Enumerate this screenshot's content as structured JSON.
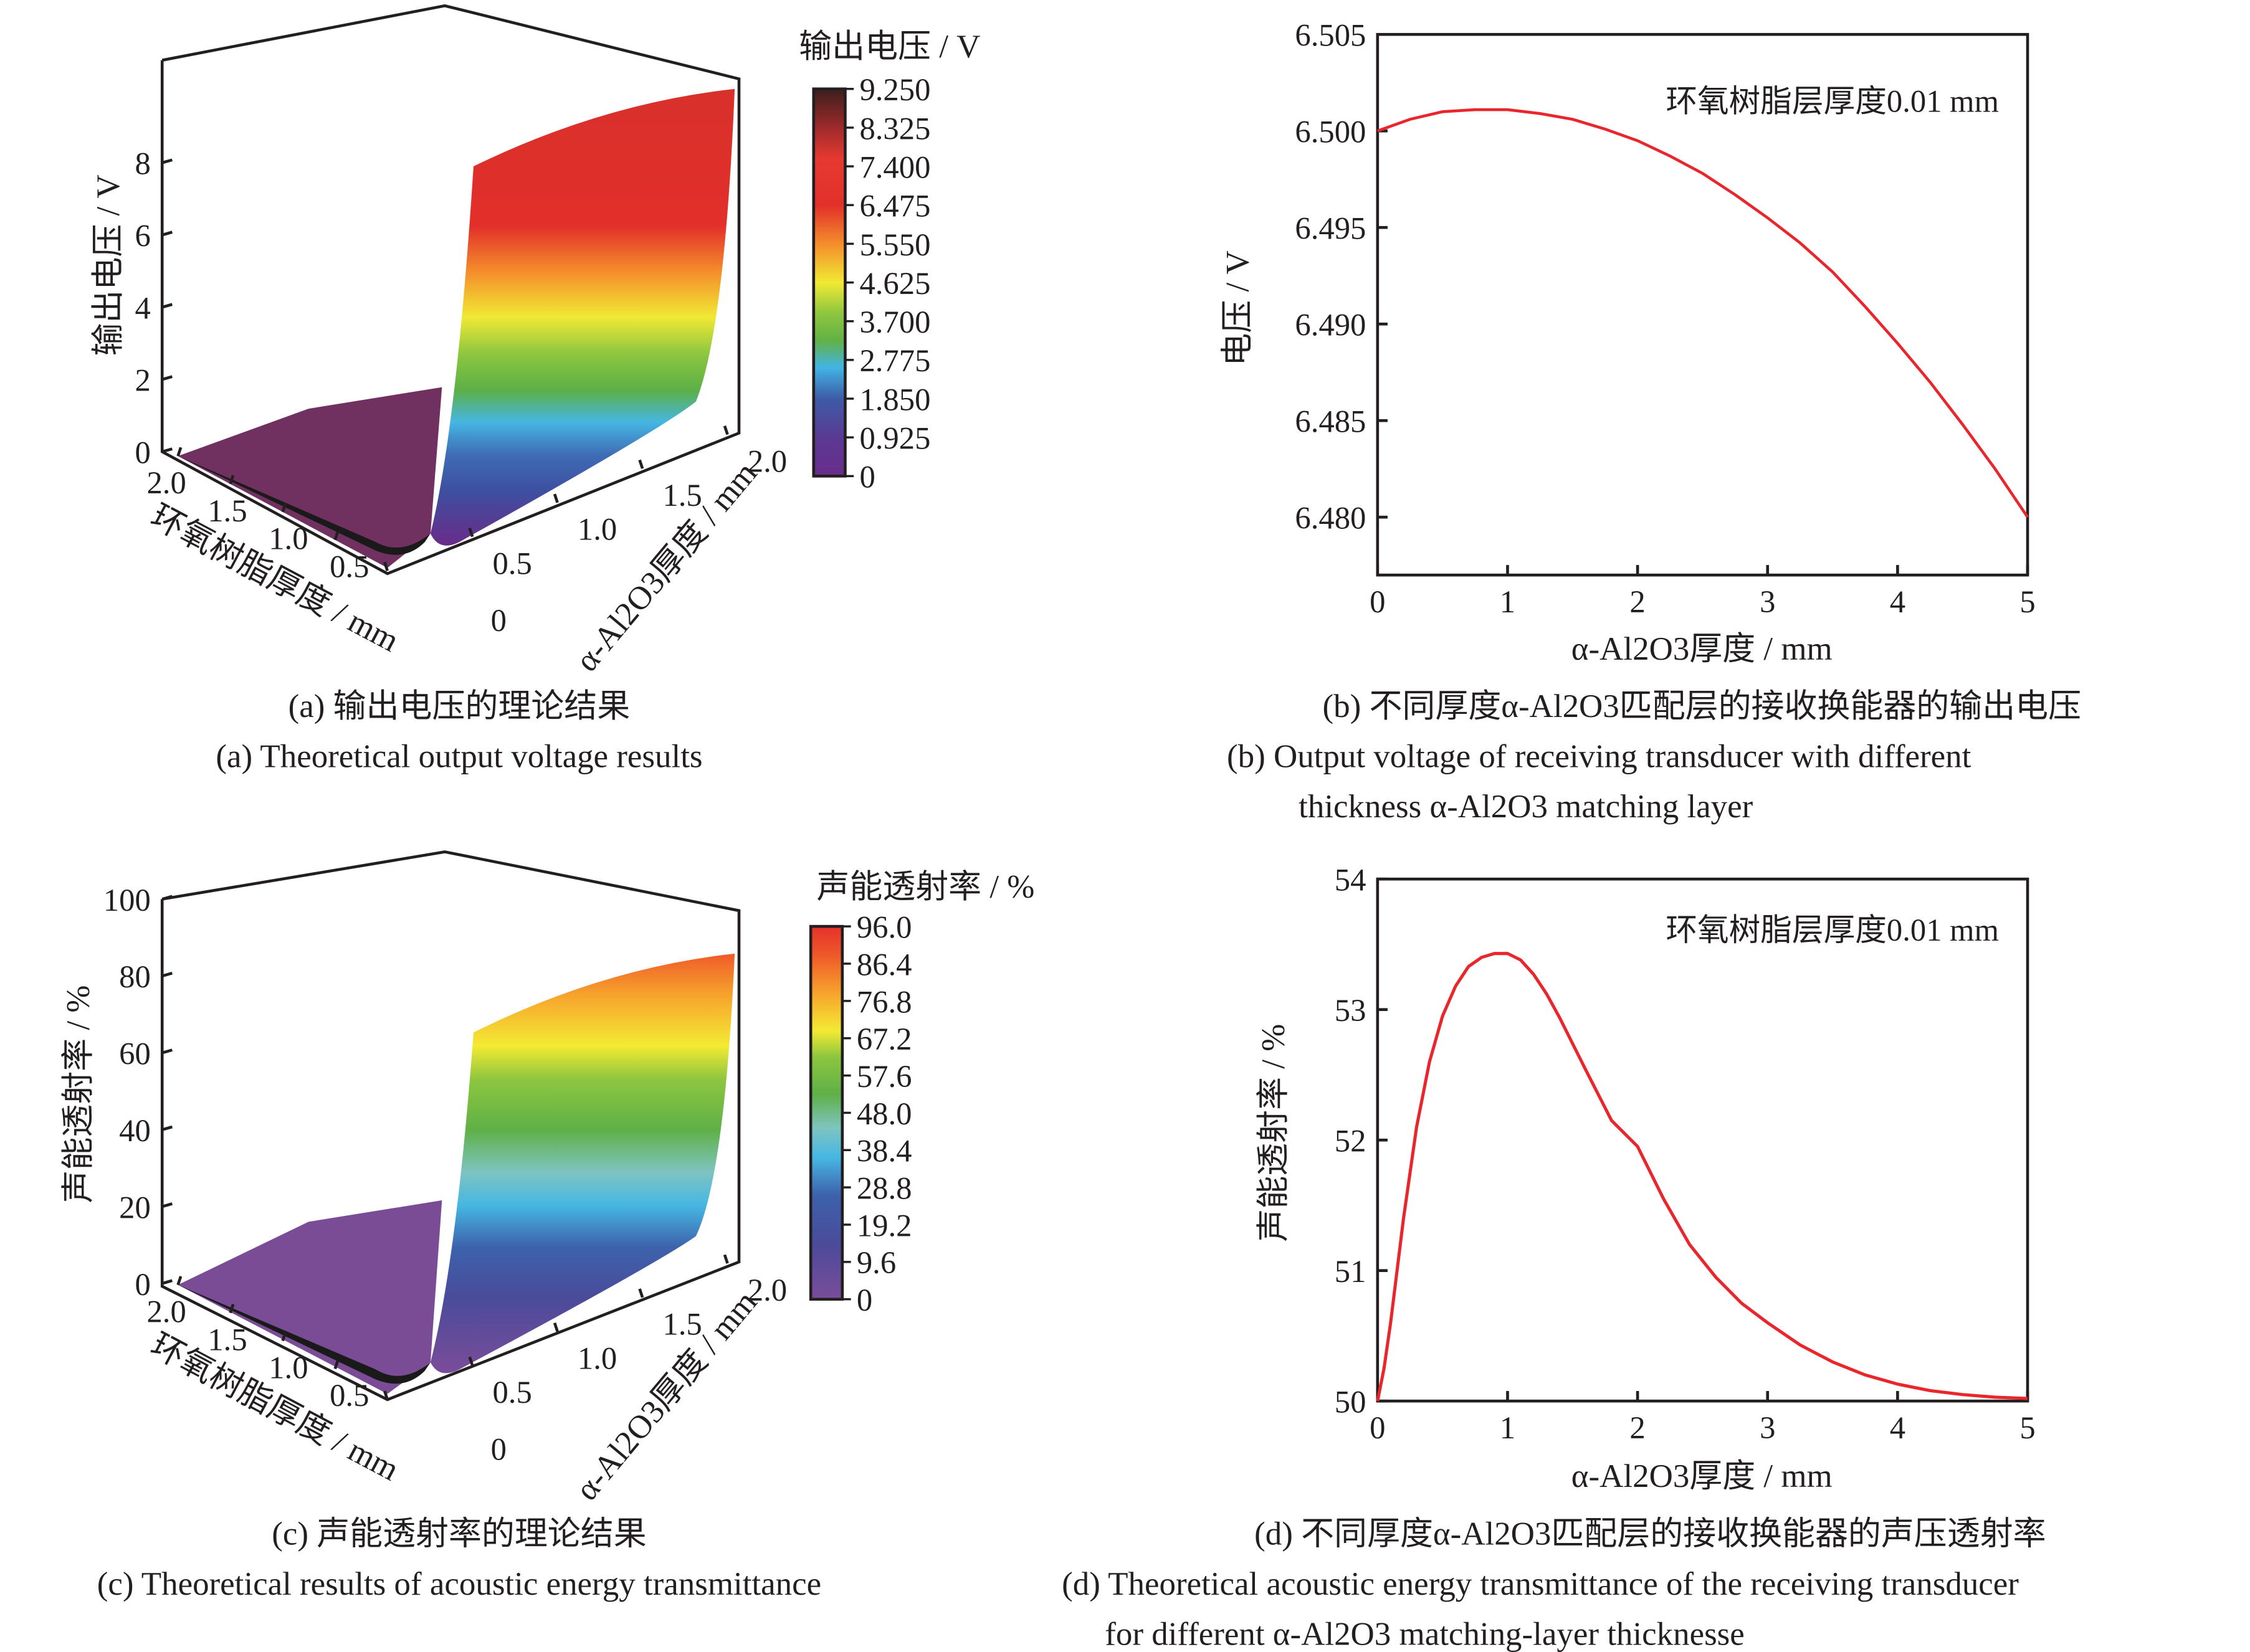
{
  "chart_data": [
    {
      "id": "a",
      "type": "surface3d",
      "zlabel": "输出电压 / V",
      "xlabel": "环氧树脂厚度 / mm",
      "ylabel": "α-Al2O3厚度 / mm",
      "z_ticks": [
        "0",
        "2",
        "4",
        "6",
        "8"
      ],
      "x_ticks": [
        "2.0",
        "1.5",
        "1.0",
        "0.5"
      ],
      "y_ticks": [
        "0",
        "0.5",
        "1.0",
        "1.5",
        "2.0"
      ],
      "zlim": [
        0,
        9.25
      ],
      "colorbar": {
        "title": "输出电压 / V",
        "ticks": [
          "9.250",
          "8.325",
          "7.400",
          "6.475",
          "5.550",
          "4.625",
          "3.700",
          "2.775",
          "1.850",
          "0.925",
          "0"
        ],
        "range": [
          0,
          9.25
        ]
      },
      "surface": {
        "edge_low_value": 0,
        "ridge_start_value": 7.0,
        "ridge_end_value": 8.6
      },
      "caption_cn": "(a)  输出电压的理论结果",
      "caption_en": "(a)  Theoretical output voltage results"
    },
    {
      "id": "b",
      "type": "line",
      "xlabel": "α-Al2O3厚度 / mm",
      "ylabel": "电压 / V",
      "xlim": [
        0,
        5
      ],
      "ylim": [
        6.477,
        6.505
      ],
      "x_ticks": [
        "0",
        "1",
        "2",
        "3",
        "4",
        "5"
      ],
      "y_ticks": [
        "6.480",
        "6.485",
        "6.490",
        "6.495",
        "6.500",
        "6.505"
      ],
      "annotation": "环氧树脂层厚度0.01 mm",
      "series": [
        {
          "name": "voltage",
          "color": "#e8262c",
          "x": [
            0,
            0.25,
            0.5,
            0.75,
            1.0,
            1.25,
            1.5,
            1.75,
            2.0,
            2.25,
            2.5,
            2.75,
            3.0,
            3.25,
            3.5,
            3.75,
            4.0,
            4.25,
            4.5,
            4.75,
            5.0
          ],
          "y": [
            6.5,
            6.5006,
            6.501,
            6.5011,
            6.5011,
            6.5009,
            6.5006,
            6.5001,
            6.4995,
            6.4987,
            6.4978,
            6.4967,
            6.4955,
            6.4942,
            6.4927,
            6.4909,
            6.489,
            6.487,
            6.4848,
            6.4825,
            6.48
          ]
        }
      ],
      "caption_cn": "(b)  不同厚度α-Al2O3匹配层的接收换能器的输出电压",
      "caption_en_1": "(b)  Output voltage of receiving transducer with different",
      "caption_en_2": "thickness α-Al2O3 matching layer"
    },
    {
      "id": "c",
      "type": "surface3d",
      "zlabel": "声能透射率 / %",
      "xlabel": "环氧树脂厚度 / mm",
      "ylabel": "α-Al2O3厚度 / mm",
      "z_ticks": [
        "0",
        "20",
        "40",
        "60",
        "80",
        "100"
      ],
      "x_ticks": [
        "2.0",
        "1.5",
        "1.0",
        "0.5"
      ],
      "y_ticks": [
        "0",
        "0.5",
        "1.0",
        "1.5",
        "2.0"
      ],
      "zlim": [
        0,
        100
      ],
      "colorbar": {
        "title": "声能透射率 / %",
        "ticks": [
          "96.0",
          "86.4",
          "76.8",
          "67.2",
          "57.6",
          "48.0",
          "38.4",
          "28.8",
          "19.2",
          "9.6",
          "0"
        ],
        "range": [
          0,
          96
        ]
      },
      "surface": {
        "edge_low_value": 0,
        "ridge_start_value": 70,
        "ridge_end_value": 85
      },
      "caption_cn": "(c)  声能透射率的理论结果",
      "caption_en": "(c)  Theoretical results of acoustic energy transmittance"
    },
    {
      "id": "d",
      "type": "line",
      "xlabel": "α-Al2O3厚度 / mm",
      "ylabel": "声能透射率 / %",
      "xlim": [
        0,
        5
      ],
      "ylim": [
        50,
        54
      ],
      "x_ticks": [
        "0",
        "1",
        "2",
        "3",
        "4",
        "5"
      ],
      "y_ticks": [
        "50",
        "51",
        "52",
        "53",
        "54"
      ],
      "annotation": "环氧树脂层厚度0.01 mm",
      "series": [
        {
          "name": "transmittance",
          "color": "#e8262c",
          "x": [
            0,
            0.05,
            0.1,
            0.15,
            0.2,
            0.3,
            0.4,
            0.5,
            0.6,
            0.7,
            0.8,
            0.9,
            1.0,
            1.1,
            1.2,
            1.3,
            1.4,
            1.5,
            1.6,
            1.8,
            2.0,
            2.2,
            2.4,
            2.6,
            2.8,
            3.0,
            3.25,
            3.5,
            3.75,
            4.0,
            4.25,
            4.5,
            4.75,
            5.0
          ],
          "y": [
            50.0,
            50.25,
            50.6,
            51.0,
            51.4,
            52.1,
            52.6,
            52.95,
            53.18,
            53.33,
            53.4,
            53.43,
            53.43,
            53.38,
            53.27,
            53.12,
            52.94,
            52.74,
            52.54,
            52.15,
            51.95,
            51.55,
            51.2,
            50.95,
            50.75,
            50.6,
            50.43,
            50.3,
            50.2,
            50.13,
            50.08,
            50.05,
            50.03,
            50.02
          ]
        }
      ],
      "caption_cn": "(d) 不同厚度α-Al2O3匹配层的接收换能器的声压透射率",
      "caption_en_1": "(d) Theoretical acoustic energy transmittance of the receiving transducer",
      "caption_en_2": "for different  α-Al2O3 matching-layer thicknesse"
    }
  ]
}
